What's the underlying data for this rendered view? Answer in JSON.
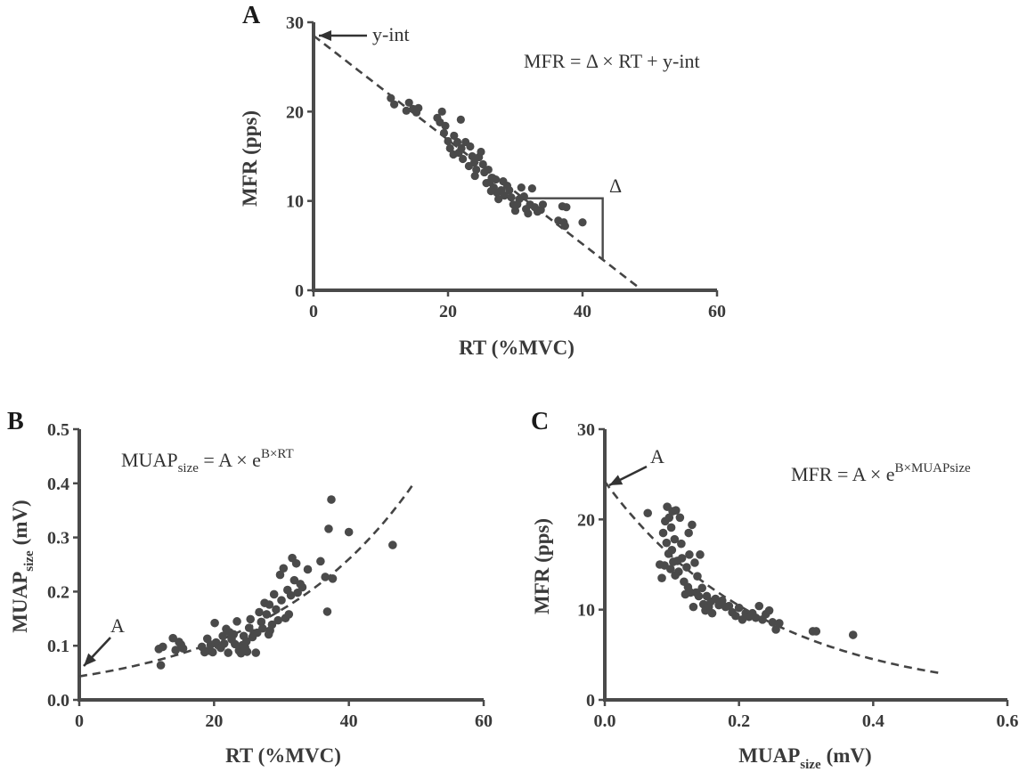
{
  "chart_data": [
    {
      "panel": "A",
      "type": "scatter",
      "xlabel": "RT (%MVC)",
      "ylabel": "MFR (pps)",
      "xlim": [
        0,
        60
      ],
      "ylim": [
        0,
        30
      ],
      "xticks": [
        "0",
        "20",
        "40",
        "60"
      ],
      "yticks": [
        "0",
        "10",
        "20",
        "30"
      ],
      "annotations": {
        "equation": "MFR = Δ × RT + y-int",
        "intercept_label": "y-int",
        "slope_label": "Δ"
      },
      "fit_line": {
        "type": "linear",
        "slope": -0.583,
        "intercept": 28.5,
        "x_range": [
          0,
          48.5
        ]
      },
      "slope_triangle": {
        "x1": 30,
        "x2": 43,
        "y_top": 10.3
      },
      "points": [
        [
          11.5,
          21.5
        ],
        [
          12,
          20.8
        ],
        [
          13.8,
          20.1
        ],
        [
          14.2,
          21
        ],
        [
          14.8,
          20.3
        ],
        [
          15.3,
          19.9
        ],
        [
          15.6,
          20.4
        ],
        [
          18.4,
          19.3
        ],
        [
          18.8,
          18.8
        ],
        [
          19.1,
          20
        ],
        [
          19.4,
          17.6
        ],
        [
          19.6,
          18.4
        ],
        [
          20,
          16.7
        ],
        [
          20.3,
          15.9
        ],
        [
          20.9,
          17.3
        ],
        [
          21.4,
          16.6
        ],
        [
          21.6,
          15.4
        ],
        [
          21.9,
          19.1
        ],
        [
          22,
          15.9
        ],
        [
          22.2,
          14.7
        ],
        [
          22.6,
          16.6
        ],
        [
          23.1,
          13.9
        ],
        [
          23.3,
          16.1
        ],
        [
          23.6,
          15
        ],
        [
          23.9,
          14.3
        ],
        [
          24.2,
          13.5
        ],
        [
          24.6,
          14.9
        ],
        [
          24.9,
          15.5
        ],
        [
          25.2,
          14.1
        ],
        [
          25.4,
          13.2
        ],
        [
          25.7,
          12
        ],
        [
          26,
          13.5
        ],
        [
          26.2,
          12.1
        ],
        [
          26.5,
          12.6
        ],
        [
          26.8,
          11.5
        ],
        [
          27.1,
          12.4
        ],
        [
          27.3,
          10.9
        ],
        [
          27.5,
          10.2
        ],
        [
          27.9,
          11.2
        ],
        [
          28.2,
          12.2
        ],
        [
          28.4,
          10.6
        ],
        [
          28.8,
          11.7
        ],
        [
          29.1,
          11.2
        ],
        [
          29.4,
          10.4
        ],
        [
          29.7,
          9.6
        ],
        [
          30,
          8.9
        ],
        [
          30.3,
          9.6
        ],
        [
          30.6,
          10.2
        ],
        [
          30.9,
          11.5
        ],
        [
          31.3,
          10.5
        ],
        [
          31.6,
          9.1
        ],
        [
          31.9,
          8.6
        ],
        [
          32.2,
          9.6
        ],
        [
          32.5,
          11.4
        ],
        [
          32.9,
          9.3
        ],
        [
          33.3,
          8.8
        ],
        [
          33.8,
          9
        ],
        [
          34.1,
          9.6
        ],
        [
          36.4,
          7.8
        ],
        [
          37,
          9.4
        ],
        [
          37.2,
          7.6
        ],
        [
          37.4,
          7.2
        ],
        [
          37.6,
          9.3
        ],
        [
          40,
          7.6
        ],
        [
          20.8,
          15.2
        ],
        [
          24,
          12.8
        ],
        [
          26.4,
          11.1
        ]
      ]
    },
    {
      "panel": "B",
      "type": "scatter",
      "xlabel": "RT (%MVC)",
      "ylabel": "MUAPsize (mV)",
      "ylabel_main": "MUAP",
      "ylabel_sub": "size",
      "ylabel_unit": "(mV)",
      "xlim": [
        0,
        60
      ],
      "ylim": [
        0,
        0.5
      ],
      "xticks": [
        "0",
        "20",
        "40",
        "60"
      ],
      "yticks": [
        "0.0",
        "0.1",
        "0.2",
        "0.3",
        "0.4",
        "0.5"
      ],
      "annotations": {
        "equation_main": "MUAP",
        "equation_sub": "size",
        "equation_rest": " = A × e",
        "equation_sup": "B×RT",
        "intercept_label": "A"
      },
      "fit_line": {
        "type": "exponential",
        "A": 0.0435,
        "B": 0.0447,
        "x_range": [
          0,
          49.5
        ]
      },
      "points": [
        [
          11.8,
          0.094
        ],
        [
          12.1,
          0.064
        ],
        [
          12.4,
          0.098
        ],
        [
          13.9,
          0.114
        ],
        [
          14.3,
          0.092
        ],
        [
          14.8,
          0.107
        ],
        [
          15.1,
          0.102
        ],
        [
          15.4,
          0.095
        ],
        [
          18.2,
          0.098
        ],
        [
          18.6,
          0.088
        ],
        [
          19,
          0.113
        ],
        [
          19.2,
          0.091
        ],
        [
          19.5,
          0.102
        ],
        [
          19.8,
          0.088
        ],
        [
          20.1,
          0.142
        ],
        [
          20.3,
          0.106
        ],
        [
          20.6,
          0.101
        ],
        [
          21,
          0.096
        ],
        [
          21.3,
          0.118
        ],
        [
          21.5,
          0.104
        ],
        [
          21.8,
          0.131
        ],
        [
          22.1,
          0.087
        ],
        [
          22.3,
          0.125
        ],
        [
          22.6,
          0.112
        ],
        [
          22.9,
          0.121
        ],
        [
          23.1,
          0.103
        ],
        [
          23.4,
          0.145
        ],
        [
          23.7,
          0.091
        ],
        [
          24,
          0.086
        ],
        [
          24.2,
          0.101
        ],
        [
          24.4,
          0.118
        ],
        [
          24.6,
          0.097
        ],
        [
          24.9,
          0.089
        ],
        [
          25.2,
          0.133
        ],
        [
          25.4,
          0.149
        ],
        [
          25.7,
          0.116
        ],
        [
          25.9,
          0.123
        ],
        [
          26.2,
          0.087
        ],
        [
          26.4,
          0.124
        ],
        [
          26.7,
          0.162
        ],
        [
          27,
          0.144
        ],
        [
          27.2,
          0.132
        ],
        [
          27.5,
          0.179
        ],
        [
          27.8,
          0.158
        ],
        [
          28.1,
          0.121
        ],
        [
          28.3,
          0.128
        ],
        [
          28.6,
          0.139
        ],
        [
          28.9,
          0.195
        ],
        [
          29.2,
          0.167
        ],
        [
          29.5,
          0.147
        ],
        [
          29.8,
          0.231
        ],
        [
          30,
          0.184
        ],
        [
          30.3,
          0.243
        ],
        [
          30.6,
          0.151
        ],
        [
          30.9,
          0.203
        ],
        [
          31.1,
          0.158
        ],
        [
          31.4,
          0.193
        ],
        [
          31.6,
          0.262
        ],
        [
          31.9,
          0.221
        ],
        [
          32.2,
          0.252
        ],
        [
          32.4,
          0.198
        ],
        [
          32.8,
          0.214
        ],
        [
          33.1,
          0.208
        ],
        [
          33.9,
          0.241
        ],
        [
          35.8,
          0.256
        ],
        [
          36.5,
          0.227
        ],
        [
          36.8,
          0.163
        ],
        [
          37,
          0.316
        ],
        [
          37.4,
          0.37
        ],
        [
          37.6,
          0.224
        ],
        [
          40,
          0.31
        ],
        [
          46.5,
          0.286
        ],
        [
          28.2,
          0.176
        ],
        [
          24.8,
          0.108
        ]
      ]
    },
    {
      "panel": "C",
      "type": "scatter",
      "xlabel": "MUAPsize (mV)",
      "xlabel_main": "MUAP",
      "xlabel_sub": "size",
      "xlabel_unit": "(mV)",
      "ylabel": "MFR (pps)",
      "xlim": [
        0,
        0.6
      ],
      "ylim": [
        0,
        30
      ],
      "xticks": [
        "0.0",
        "0.2",
        "0.4",
        "0.6"
      ],
      "yticks": [
        "0",
        "10",
        "20",
        "30"
      ],
      "annotations": {
        "equation_rest": "MFR = A × e",
        "equation_sup": "B×MUAPsize",
        "intercept_label": "A"
      },
      "fit_line": {
        "type": "exponential",
        "A": 24.2,
        "B": -4.2,
        "x_range": [
          0,
          0.5
        ]
      },
      "points": [
        [
          0.064,
          20.7
        ],
        [
          0.082,
          15
        ],
        [
          0.085,
          13.5
        ],
        [
          0.087,
          18.5
        ],
        [
          0.089,
          14.9
        ],
        [
          0.09,
          19.8
        ],
        [
          0.092,
          17.4
        ],
        [
          0.093,
          21.4
        ],
        [
          0.095,
          16.2
        ],
        [
          0.096,
          20.2
        ],
        [
          0.098,
          14.5
        ],
        [
          0.099,
          19.1
        ],
        [
          0.1,
          16.6
        ],
        [
          0.101,
          20.9
        ],
        [
          0.102,
          15.3
        ],
        [
          0.104,
          17.8
        ],
        [
          0.106,
          21
        ],
        [
          0.108,
          15.4
        ],
        [
          0.11,
          14.2
        ],
        [
          0.112,
          20.2
        ],
        [
          0.114,
          17.3
        ],
        [
          0.115,
          15.7
        ],
        [
          0.118,
          13.1
        ],
        [
          0.12,
          11.7
        ],
        [
          0.122,
          14.7
        ],
        [
          0.124,
          12.5
        ],
        [
          0.126,
          16.1
        ],
        [
          0.128,
          11.9
        ],
        [
          0.13,
          19.4
        ],
        [
          0.132,
          10.3
        ],
        [
          0.134,
          15.2
        ],
        [
          0.136,
          11.9
        ],
        [
          0.138,
          13.7
        ],
        [
          0.14,
          11.5
        ],
        [
          0.142,
          16.1
        ],
        [
          0.145,
          12.4
        ],
        [
          0.147,
          10.6
        ],
        [
          0.15,
          9.9
        ],
        [
          0.152,
          11.5
        ],
        [
          0.155,
          10.3
        ],
        [
          0.158,
          10.9
        ],
        [
          0.16,
          9.6
        ],
        [
          0.165,
          11.2
        ],
        [
          0.17,
          10.5
        ],
        [
          0.175,
          11
        ],
        [
          0.18,
          10.3
        ],
        [
          0.185,
          10.4
        ],
        [
          0.19,
          9.7
        ],
        [
          0.195,
          9.3
        ],
        [
          0.2,
          10.2
        ],
        [
          0.205,
          8.9
        ],
        [
          0.21,
          9.6
        ],
        [
          0.215,
          9.2
        ],
        [
          0.22,
          9.6
        ],
        [
          0.225,
          9.1
        ],
        [
          0.23,
          10.4
        ],
        [
          0.235,
          8.9
        ],
        [
          0.24,
          9.5
        ],
        [
          0.245,
          9.9
        ],
        [
          0.25,
          8.6
        ],
        [
          0.255,
          7.8
        ],
        [
          0.26,
          8.5
        ],
        [
          0.31,
          7.6
        ],
        [
          0.315,
          7.6
        ],
        [
          0.37,
          7.2
        ],
        [
          0.105,
          13.8
        ],
        [
          0.125,
          18.5
        ]
      ]
    }
  ]
}
